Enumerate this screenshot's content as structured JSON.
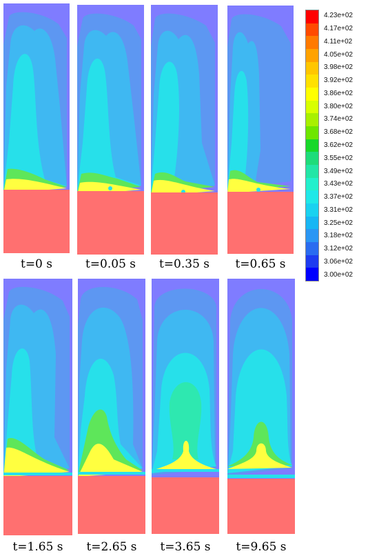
{
  "panels": [
    {
      "caption": "t=0 s"
    },
    {
      "caption": "t=0.05 s"
    },
    {
      "caption": "t=0.35 s"
    },
    {
      "caption": "t=0.65 s"
    },
    {
      "caption": "t=1.65 s"
    },
    {
      "caption": "t=2.65 s"
    },
    {
      "caption": "t=3.65 s"
    },
    {
      "caption": "t=9.65 s"
    }
  ],
  "legend": {
    "labels": [
      "4.23e+02",
      "4.17e+02",
      "4.11e+02",
      "4.05e+02",
      "3.98e+02",
      "3.92e+02",
      "3.86e+02",
      "3.80e+02",
      "3.74e+02",
      "3.68e+02",
      "3.62e+02",
      "3.55e+02",
      "3.49e+02",
      "3.43e+02",
      "3.37e+02",
      "3.31e+02",
      "3.25e+02",
      "3.18e+02",
      "3.12e+02",
      "3.06e+02",
      "3.00e+02"
    ],
    "colors": [
      "#ff0000",
      "#ff4a00",
      "#ff7a00",
      "#ffa200",
      "#ffc600",
      "#ffe100",
      "#ffff00",
      "#d8ff00",
      "#a8f000",
      "#6ee600",
      "#18d82a",
      "#1edc7a",
      "#22e6a6",
      "#22f0cc",
      "#1fe8e8",
      "#1ad2f0",
      "#18b6f4",
      "#2a96f4",
      "#2a6cf0",
      "#1e3cf0",
      "#0000ff"
    ]
  },
  "field_colors": {
    "hot": "#ff7070",
    "ambient": "#7f7cff",
    "layer1": "#5d97f2",
    "layer2": "#3fb8f2",
    "layer3": "#27e0ea",
    "layer4": "#2ee8b0",
    "layer5": "#5ee65a",
    "layer6": "#ffff40",
    "layer7": "#ffd86a"
  }
}
